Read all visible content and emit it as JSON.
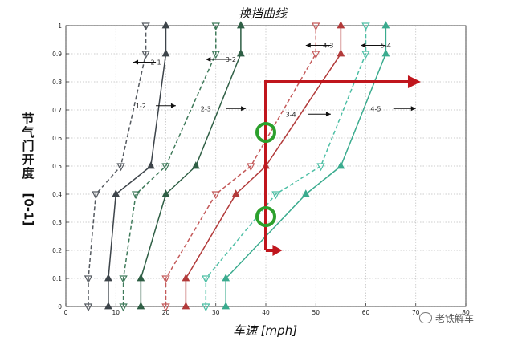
{
  "chart_data": {
    "type": "line",
    "title": "换挡曲线",
    "xlabel": "车速 [mph]",
    "ylabel_chars": [
      "节",
      "气",
      "门",
      "开",
      "度"
    ],
    "ylabel_unit": "[0-1]",
    "xlim": [
      0,
      80
    ],
    "ylim": [
      0,
      1
    ],
    "xticks": [
      0,
      10,
      20,
      30,
      40,
      50,
      60,
      70,
      80
    ],
    "xtick_labels": [
      "0",
      "10",
      "20",
      "30",
      "40",
      "50",
      "60",
      "70",
      "80"
    ],
    "yticks": [
      0,
      0.1,
      0.2,
      0.3,
      0.4,
      0.5,
      0.6,
      0.7,
      0.8,
      0.9,
      1
    ],
    "ytick_labels": [
      "0",
      "0.1",
      "0.2",
      "0.3",
      "0.4",
      "0.5",
      "0.6",
      "0.7",
      "0.8",
      "0.9",
      "1"
    ],
    "grid": true,
    "series": [
      {
        "name": "2-1",
        "style": "dashed",
        "marker": "down-triangle",
        "color": "#555a60",
        "x": [
          4.5,
          4.5,
          6,
          11,
          16,
          16
        ],
        "y": [
          0,
          0.1,
          0.4,
          0.5,
          0.9,
          1
        ]
      },
      {
        "name": "1-2",
        "style": "solid",
        "marker": "up-triangle",
        "color": "#3d444a",
        "x": [
          8.5,
          8.5,
          10,
          17,
          20,
          20
        ],
        "y": [
          0,
          0.1,
          0.4,
          0.5,
          0.9,
          1
        ]
      },
      {
        "name": "3-2",
        "style": "dashed",
        "marker": "down-triangle",
        "color": "#3f7a5a",
        "x": [
          11.5,
          11.5,
          14,
          20,
          30,
          30
        ],
        "y": [
          0,
          0.1,
          0.4,
          0.5,
          0.9,
          1
        ]
      },
      {
        "name": "2-3",
        "style": "solid",
        "marker": "up-triangle",
        "color": "#2f5f45",
        "x": [
          15,
          15,
          20,
          26,
          35,
          35
        ],
        "y": [
          0,
          0.1,
          0.4,
          0.5,
          0.9,
          1
        ]
      },
      {
        "name": "4-3",
        "style": "dashed",
        "marker": "down-triangle",
        "color": "#c45a5a",
        "x": [
          20,
          20,
          30,
          37,
          50,
          50
        ],
        "y": [
          0,
          0.1,
          0.4,
          0.5,
          0.9,
          1
        ]
      },
      {
        "name": "3-4",
        "style": "solid",
        "marker": "up-triangle",
        "color": "#b23a3a",
        "x": [
          24,
          24,
          34,
          40,
          55,
          55
        ],
        "y": [
          0,
          0.1,
          0.4,
          0.5,
          0.9,
          1
        ]
      },
      {
        "name": "5-4",
        "style": "dashed",
        "marker": "down-triangle",
        "color": "#4dbfa5",
        "x": [
          28,
          28,
          42,
          51,
          60,
          60
        ],
        "y": [
          0,
          0.1,
          0.4,
          0.5,
          0.9,
          1
        ]
      },
      {
        "name": "4-5",
        "style": "solid",
        "marker": "up-triangle",
        "color": "#3aab8e",
        "x": [
          32,
          32,
          48,
          55,
          64,
          64
        ],
        "y": [
          0,
          0.1,
          0.4,
          0.5,
          0.9,
          1
        ]
      }
    ],
    "annotations": [
      {
        "text": "2-1",
        "x": 18,
        "y": 0.87,
        "arrow": "left",
        "x_tail": 18,
        "x_head": 13.5
      },
      {
        "text": "3-2",
        "x": 33,
        "y": 0.88,
        "arrow": "left",
        "x_tail": 33,
        "x_head": 28
      },
      {
        "text": "4-3",
        "x": 52.5,
        "y": 0.93,
        "arrow": "left",
        "x_tail": 53,
        "x_head": 48
      },
      {
        "text": "5-4",
        "x": 64,
        "y": 0.93,
        "arrow": "left",
        "x_tail": 64,
        "x_head": 59
      },
      {
        "text": "1-2",
        "x": 15,
        "y": 0.715,
        "arrow": "right",
        "x_tail": 18,
        "x_head": 22
      },
      {
        "text": "2-3",
        "x": 28,
        "y": 0.705,
        "arrow": "right",
        "x_tail": 32,
        "x_head": 36
      },
      {
        "text": "3-4",
        "x": 45,
        "y": 0.685,
        "arrow": "right",
        "x_tail": 48.5,
        "x_head": 53
      },
      {
        "text": "4-5",
        "x": 62,
        "y": 0.705,
        "arrow": "right",
        "x_tail": 65.5,
        "x_head": 70
      }
    ],
    "overlay_arrows": {
      "color": "#c0161d",
      "vertical": {
        "x": 40,
        "y_from": 0.2,
        "y_to": 0.8
      },
      "horizontal_top": {
        "y": 0.8,
        "x_from": 40,
        "x_to": 71
      },
      "horizontal_bottom": {
        "y": 0.2,
        "x_from": 40,
        "x_to": 42
      }
    },
    "highlight_circles": [
      {
        "x": 40,
        "y": 0.62,
        "color": "#2ca02c"
      },
      {
        "x": 40,
        "y": 0.32,
        "color": "#2ca02c"
      }
    ]
  },
  "watermark": {
    "text": "老铁解车"
  }
}
